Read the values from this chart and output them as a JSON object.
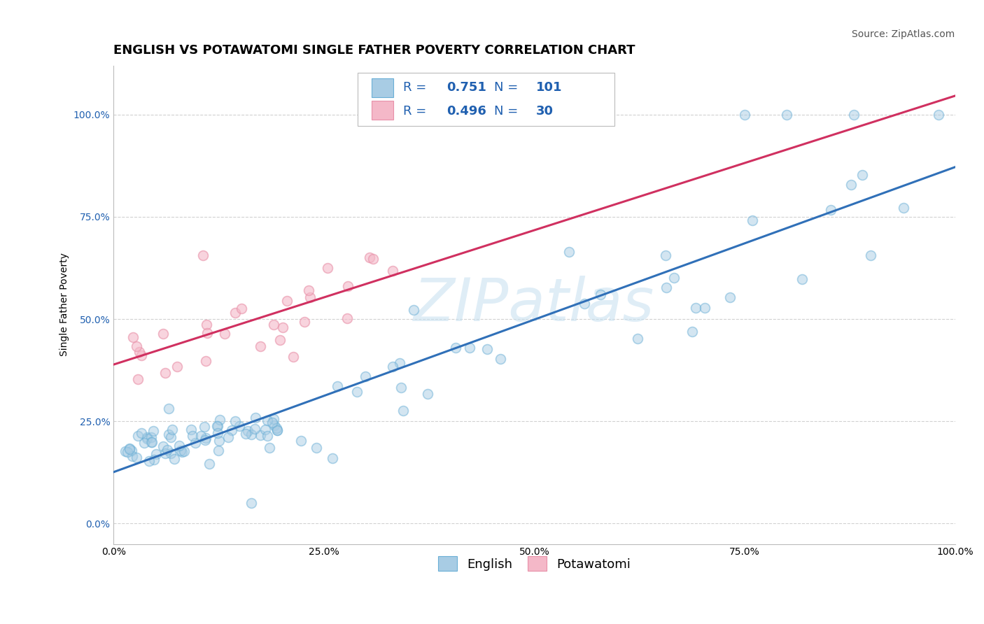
{
  "title": "ENGLISH VS POTAWATOMI SINGLE FATHER POVERTY CORRELATION CHART",
  "source": "Source: ZipAtlas.com",
  "ylabel": "Single Father Poverty",
  "xlim": [
    0.0,
    1.0
  ],
  "ylim": [
    -0.05,
    1.12
  ],
  "xticks": [
    0.0,
    0.25,
    0.5,
    0.75,
    1.0
  ],
  "xtick_labels": [
    "0.0%",
    "25.0%",
    "50.0%",
    "75.0%",
    "100.0%"
  ],
  "yticks": [
    0.0,
    0.25,
    0.5,
    0.75,
    1.0
  ],
  "ytick_labels": [
    "0.0%",
    "25.0%",
    "50.0%",
    "75.0%",
    "100.0%"
  ],
  "english_R": 0.751,
  "english_N": 101,
  "potawatomi_R": 0.496,
  "potawatomi_N": 30,
  "english_face_color": "#a8cce4",
  "english_edge_color": "#6aafd6",
  "potawatomi_face_color": "#f4b8c8",
  "potawatomi_edge_color": "#e890a8",
  "english_line_color": "#3070b8",
  "potawatomi_line_color": "#d03060",
  "legend_text_color": "#2060b0",
  "yaxis_tick_color": "#2060b0",
  "background_color": "#ffffff",
  "watermark_color": "#c5dff0",
  "title_fontsize": 13,
  "axis_label_fontsize": 10,
  "tick_fontsize": 10,
  "legend_fontsize": 13,
  "source_fontsize": 10,
  "marker_size": 100,
  "english_alpha": 0.5,
  "potawatomi_alpha": 0.6
}
